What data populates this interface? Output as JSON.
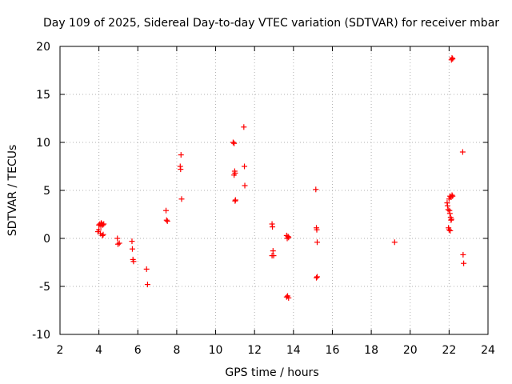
{
  "chart_data": {
    "type": "scatter",
    "title": "Day 109 of 2025, Sidereal Day-to-day VTEC variation (SDTVAR) for receiver mbar",
    "xlabel": "GPS time / hours",
    "ylabel": "SDTVAR / TECUs",
    "xlim": [
      2,
      24
    ],
    "ylim": [
      -10,
      20
    ],
    "xticks": [
      2,
      4,
      6,
      8,
      10,
      12,
      14,
      16,
      18,
      20,
      22,
      24
    ],
    "yticks": [
      -10,
      -5,
      0,
      5,
      10,
      15,
      20
    ],
    "grid": true,
    "marker": "+",
    "marker_color": "#ff0000",
    "series": [
      {
        "name": "SDTVAR",
        "points": [
          [
            3.95,
            0.7
          ],
          [
            4.0,
            0.9
          ],
          [
            4.0,
            1.4
          ],
          [
            4.05,
            1.5
          ],
          [
            4.08,
            0.5
          ],
          [
            4.1,
            1.3
          ],
          [
            4.12,
            1.6
          ],
          [
            4.15,
            1.5
          ],
          [
            4.18,
            0.3
          ],
          [
            4.2,
            1.4
          ],
          [
            4.22,
            0.4
          ],
          [
            4.25,
            1.5
          ],
          [
            4.95,
            0.0
          ],
          [
            4.98,
            -0.6
          ],
          [
            5.05,
            -0.5
          ],
          [
            5.7,
            -0.3
          ],
          [
            5.72,
            -1.1
          ],
          [
            5.75,
            -2.2
          ],
          [
            5.78,
            -2.4
          ],
          [
            6.45,
            -3.2
          ],
          [
            6.5,
            -4.8
          ],
          [
            7.45,
            2.9
          ],
          [
            7.48,
            1.9
          ],
          [
            7.52,
            1.8
          ],
          [
            8.18,
            7.5
          ],
          [
            8.2,
            7.2
          ],
          [
            8.22,
            8.7
          ],
          [
            8.25,
            4.1
          ],
          [
            10.9,
            10.0
          ],
          [
            10.95,
            9.9
          ],
          [
            10.95,
            6.6
          ],
          [
            10.98,
            7.0
          ],
          [
            11.0,
            3.9
          ],
          [
            11.02,
            4.0
          ],
          [
            11.0,
            6.8
          ],
          [
            11.45,
            11.6
          ],
          [
            11.48,
            7.5
          ],
          [
            11.5,
            5.5
          ],
          [
            12.9,
            1.5
          ],
          [
            12.92,
            1.2
          ],
          [
            12.95,
            -1.3
          ],
          [
            12.98,
            -1.8
          ],
          [
            12.9,
            -1.8
          ],
          [
            13.65,
            0.3
          ],
          [
            13.68,
            0.0
          ],
          [
            13.72,
            0.2
          ],
          [
            13.75,
            0.1
          ],
          [
            13.7,
            -6.0
          ],
          [
            13.75,
            -6.2
          ],
          [
            13.65,
            -6.1
          ],
          [
            15.15,
            5.1
          ],
          [
            15.18,
            1.1
          ],
          [
            15.2,
            0.9
          ],
          [
            15.22,
            -0.4
          ],
          [
            15.18,
            -4.1
          ],
          [
            15.22,
            -4.0
          ],
          [
            19.2,
            -0.4
          ],
          [
            21.9,
            3.7
          ],
          [
            21.92,
            3.4
          ],
          [
            21.95,
            3.0
          ],
          [
            21.97,
            1.1
          ],
          [
            22.0,
            0.9
          ],
          [
            22.0,
            4.1
          ],
          [
            22.02,
            2.9
          ],
          [
            22.04,
            2.6
          ],
          [
            22.05,
            4.4
          ],
          [
            22.06,
            0.8
          ],
          [
            22.08,
            2.2
          ],
          [
            22.1,
            4.3
          ],
          [
            22.1,
            1.9
          ],
          [
            22.12,
            2.0
          ],
          [
            22.15,
            4.5
          ],
          [
            22.18,
            4.4
          ],
          [
            22.12,
            18.6
          ],
          [
            22.15,
            18.8
          ],
          [
            22.18,
            18.7
          ],
          [
            22.7,
            9.0
          ],
          [
            22.72,
            -1.7
          ],
          [
            22.75,
            -2.6
          ]
        ]
      }
    ]
  }
}
